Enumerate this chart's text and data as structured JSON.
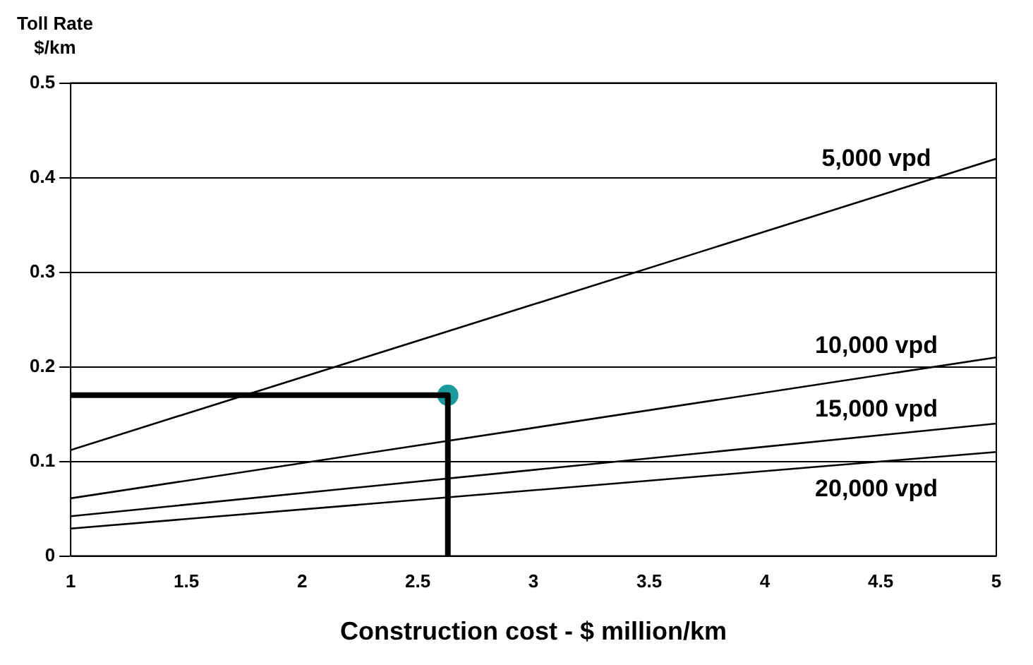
{
  "chart_data": {
    "type": "line",
    "xlabel": "Construction cost - $ million/km",
    "ylabel": "Toll Rate\n$/km",
    "xlim": [
      1,
      5
    ],
    "xticks": [
      1,
      1.5,
      2,
      2.5,
      3,
      3.5,
      4,
      4.5,
      5
    ],
    "ylim": [
      0,
      0.5
    ],
    "yticks": [
      0,
      0.1,
      0.2,
      0.3,
      0.4,
      0.5
    ],
    "grid": "y",
    "legend": false,
    "marker": "none",
    "series": [
      {
        "name": "5,000 vpd",
        "color": "#000000",
        "x": [
          1,
          5
        ],
        "values": [
          0.112,
          0.42
        ]
      },
      {
        "name": "10,000 vpd",
        "color": "#000000",
        "x": [
          1,
          5
        ],
        "values": [
          0.061,
          0.21
        ]
      },
      {
        "name": "15,000 vpd",
        "color": "#000000",
        "x": [
          1,
          5
        ],
        "values": [
          0.042,
          0.14
        ]
      },
      {
        "name": "20,000 vpd",
        "color": "#000000",
        "x": [
          1,
          5
        ],
        "values": [
          0.029,
          0.11
        ]
      },
      {
        "color": "#000000",
        "x": [
          1,
          2.63,
          2.63
        ],
        "values": [
          0.17,
          0.17,
          0
        ]
      },
      {
        "type": "scatter",
        "marker": "circle",
        "color": "#1a9a9a",
        "x": [
          2.63
        ],
        "values": [
          0.17
        ]
      }
    ]
  }
}
